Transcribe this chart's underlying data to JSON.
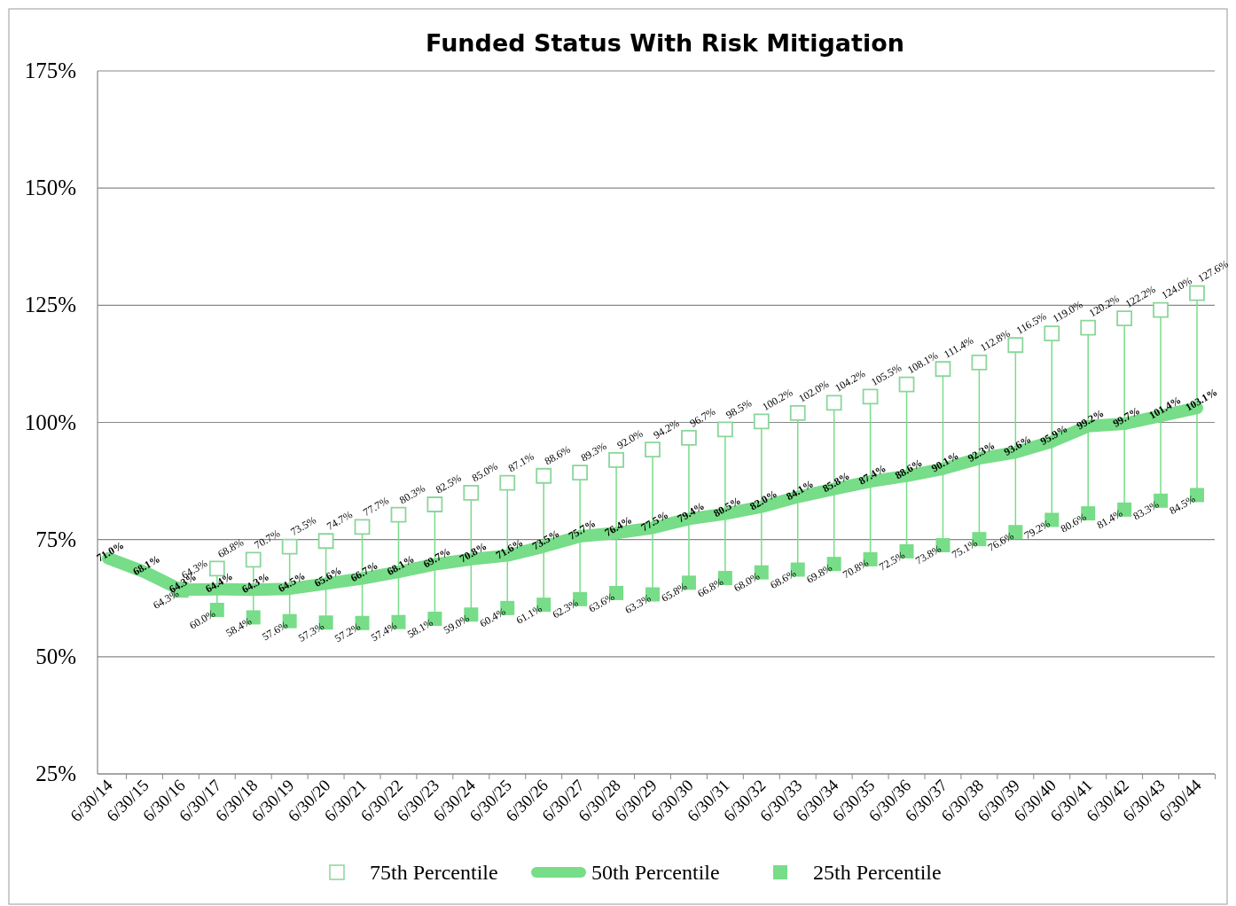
{
  "chart_data": {
    "type": "line",
    "title": "Funded Status With Risk Mitigation",
    "categories": [
      "6/30/14",
      "6/30/15",
      "6/30/16",
      "6/30/17",
      "6/30/18",
      "6/30/19",
      "6/30/20",
      "6/30/21",
      "6/30/22",
      "6/30/23",
      "6/30/24",
      "6/30/25",
      "6/30/26",
      "6/30/27",
      "6/30/28",
      "6/30/29",
      "6/30/30",
      "6/30/31",
      "6/30/32",
      "6/30/33",
      "6/30/34",
      "6/30/35",
      "6/30/36",
      "6/30/37",
      "6/30/38",
      "6/30/39",
      "6/30/40",
      "6/30/41",
      "6/30/42",
      "6/30/43",
      "6/30/44"
    ],
    "ylim": [
      25,
      175
    ],
    "yticks": [
      {
        "value": 25,
        "label": "25%"
      },
      {
        "value": 50,
        "label": "50%"
      },
      {
        "value": 75,
        "label": "75%"
      },
      {
        "value": 100,
        "label": "100%"
      },
      {
        "value": 125,
        "label": "125%"
      },
      {
        "value": 150,
        "label": "150%"
      },
      {
        "value": 175,
        "label": "175%"
      }
    ],
    "grid": "y",
    "legend": "bottom",
    "series": [
      {
        "name": "75th Percentile",
        "type": "scatter",
        "marker": "square",
        "color": "#8ad69a",
        "values": [
          null,
          null,
          64.3,
          68.8,
          70.7,
          73.5,
          74.7,
          77.7,
          80.3,
          82.5,
          85.0,
          87.1,
          88.6,
          89.3,
          92.0,
          94.2,
          96.7,
          98.5,
          100.2,
          102.0,
          104.2,
          105.5,
          108.1,
          111.4,
          112.8,
          116.5,
          119.0,
          120.2,
          122.2,
          124.0,
          127.6
        ],
        "value_labels": [
          null,
          null,
          "64.3%",
          "68.8%",
          "70.7%",
          "73.5%",
          "74.7%",
          "77.7%",
          "80.3%",
          "82.5%",
          "85.0%",
          "87.1%",
          "88.6%",
          "89.3%",
          "92.0%",
          "94.2%",
          "96.7%",
          "98.5%",
          "100.2%",
          "102.0%",
          "104.2%",
          "105.5%",
          "108.1%",
          "111.4%",
          "112.8%",
          "116.5%",
          "119.0%",
          "120.2%",
          "122.2%",
          "124.0%",
          "127.6%"
        ]
      },
      {
        "name": "50th Percentile",
        "type": "line",
        "marker": "none",
        "color": "#77dd88",
        "values": [
          71.0,
          68.1,
          64.3,
          64.4,
          64.3,
          64.5,
          65.6,
          66.7,
          68.1,
          69.7,
          70.8,
          71.6,
          73.5,
          75.7,
          76.4,
          77.5,
          79.4,
          80.5,
          82.0,
          84.1,
          85.8,
          87.4,
          88.6,
          90.1,
          92.3,
          93.6,
          95.9,
          99.2,
          99.7,
          101.4,
          103.1
        ],
        "value_labels": [
          "71.0%",
          "68.1%",
          "64.3%",
          "64.4%",
          "64.3%",
          "64.5%",
          "65.6%",
          "66.7%",
          "68.1%",
          "69.7%",
          "70.8%",
          "71.6%",
          "73.5%",
          "75.7%",
          "76.4%",
          "77.5%",
          "79.4%",
          "80.5%",
          "82.0%",
          "84.1%",
          "85.8%",
          "87.4%",
          "88.6%",
          "90.1%",
          "92.3%",
          "93.6%",
          "95.9%",
          "99.2%",
          "99.7%",
          "101.4%",
          "103.1%"
        ]
      },
      {
        "name": "25th Percentile",
        "type": "scatter",
        "marker": "square",
        "color": "#77dd88",
        "values": [
          null,
          null,
          64.3,
          60.0,
          58.4,
          57.6,
          57.3,
          57.2,
          57.4,
          58.1,
          59.0,
          60.4,
          61.1,
          62.3,
          63.6,
          63.3,
          65.8,
          66.8,
          68.0,
          68.6,
          69.8,
          70.8,
          72.5,
          73.8,
          75.1,
          76.6,
          79.2,
          80.6,
          81.4,
          83.3,
          84.5
        ],
        "value_labels": [
          null,
          null,
          "64.3%",
          "60.0%",
          "58.4%",
          "57.6%",
          "57.3%",
          "57.2%",
          "57.4%",
          "58.1%",
          "59.0%",
          "60.4%",
          "61.1%",
          "62.3%",
          "63.6%",
          "63.3%",
          "65.8%",
          "66.8%",
          "68.0%",
          "68.6%",
          "69.8%",
          "70.8%",
          "72.5%",
          "73.8%",
          "75.1%",
          "76.6%",
          "79.2%",
          "80.6%",
          "81.4%",
          "83.3%",
          "84.5%"
        ]
      }
    ]
  }
}
